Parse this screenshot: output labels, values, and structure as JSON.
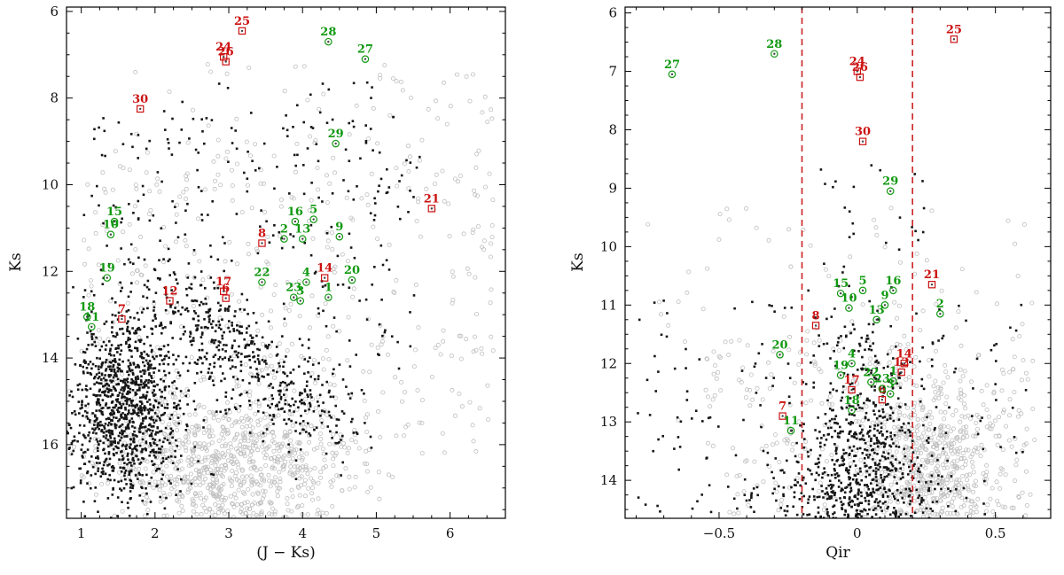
{
  "figure": {
    "background": "#ffffff"
  },
  "style": {
    "green": "#119911",
    "red": "#cc1111",
    "black_point": "#161616",
    "gray_point": "#bfbfbf",
    "frame": "#000000",
    "marker_dot": "#444444",
    "dashed_line_color": "#cc2222"
  },
  "seed": 1234,
  "chart_data": [
    {
      "type": "scatter",
      "panel": "left",
      "xlabel": "(J − Ks)",
      "ylabel": "Ks",
      "xlim": [
        0.8,
        6.75
      ],
      "ylim": [
        17.7,
        5.9
      ],
      "xticks": [
        {
          "v": 1,
          "l": "1"
        },
        {
          "v": 2,
          "l": "2"
        },
        {
          "v": 3,
          "l": "3"
        },
        {
          "v": 4,
          "l": "4"
        },
        {
          "v": 5,
          "l": "5"
        },
        {
          "v": 6,
          "l": "6"
        }
      ],
      "yticks": [
        {
          "v": 6,
          "l": "6"
        },
        {
          "v": 8,
          "l": "8"
        },
        {
          "v": 10,
          "l": "10"
        },
        {
          "v": 12,
          "l": "12"
        },
        {
          "v": 14,
          "l": "14"
        },
        {
          "v": 16,
          "l": "16"
        }
      ],
      "minor": {
        "x": 0.25,
        "y": 0.5
      },
      "clusters": [
        {
          "m": "c",
          "n": 900,
          "d": "g",
          "x": [
            3.05,
            0.85
          ],
          "y": [
            16.5,
            0.85
          ]
        },
        {
          "m": "c",
          "n": 380,
          "d": "u",
          "x": [
            1.0,
            6.6
          ],
          "y": [
            9.5,
            16.2
          ]
        },
        {
          "m": "c",
          "n": 80,
          "d": "u",
          "x": [
            1.4,
            6.6
          ],
          "y": [
            7.2,
            10.0
          ]
        },
        {
          "m": "s",
          "n": 1100,
          "d": "g",
          "x": [
            1.6,
            0.38
          ],
          "y": [
            15.2,
            1.05
          ]
        },
        {
          "m": "s",
          "n": 480,
          "d": "b",
          "x0": 2.15,
          "y0": 12.4,
          "x1": 4.35,
          "y1": 15.7,
          "sx": 0.33,
          "sy": 0.5
        },
        {
          "m": "s",
          "n": 270,
          "d": "u",
          "x": [
            1.0,
            5.6
          ],
          "y": [
            8.3,
            14.3
          ]
        },
        {
          "m": "s",
          "n": 26,
          "d": "u",
          "x": [
            1.6,
            5.0
          ],
          "y": [
            7.6,
            9.4
          ]
        }
      ],
      "sources": [
        {
          "id": "1",
          "c": "g",
          "x": 4.35,
          "y": 12.6
        },
        {
          "id": "2",
          "c": "g",
          "x": 3.75,
          "y": 11.25
        },
        {
          "id": "3",
          "c": "g",
          "x": 3.97,
          "y": 12.68
        },
        {
          "id": "4",
          "c": "g",
          "x": 4.05,
          "y": 12.25
        },
        {
          "id": "5",
          "c": "g",
          "x": 4.15,
          "y": 10.8
        },
        {
          "id": "6",
          "c": "r",
          "x": 2.96,
          "y": 12.62
        },
        {
          "id": "7",
          "c": "r",
          "x": 1.55,
          "y": 13.1
        },
        {
          "id": "8",
          "c": "r",
          "x": 3.45,
          "y": 11.35
        },
        {
          "id": "9",
          "c": "g",
          "x": 4.5,
          "y": 11.2
        },
        {
          "id": "10",
          "c": "g",
          "x": 1.4,
          "y": 11.15
        },
        {
          "id": "11",
          "c": "g",
          "x": 1.14,
          "y": 13.28
        },
        {
          "id": "12",
          "c": "r",
          "x": 2.2,
          "y": 12.68
        },
        {
          "id": "13",
          "c": "g",
          "x": 4.0,
          "y": 11.25
        },
        {
          "id": "14",
          "c": "r",
          "x": 4.3,
          "y": 12.15
        },
        {
          "id": "15",
          "c": "g",
          "x": 1.45,
          "y": 10.85
        },
        {
          "id": "16",
          "c": "g",
          "x": 3.9,
          "y": 10.85
        },
        {
          "id": "17",
          "c": "r",
          "x": 2.93,
          "y": 12.46
        },
        {
          "id": "18",
          "c": "g",
          "x": 1.08,
          "y": 13.05
        },
        {
          "id": "19",
          "c": "g",
          "x": 1.35,
          "y": 12.15
        },
        {
          "id": "20",
          "c": "g",
          "x": 4.67,
          "y": 12.2
        },
        {
          "id": "21",
          "c": "r",
          "x": 5.75,
          "y": 10.55
        },
        {
          "id": "22",
          "c": "g",
          "x": 3.45,
          "y": 12.25
        },
        {
          "id": "23",
          "c": "g",
          "x": 3.88,
          "y": 12.6
        },
        {
          "id": "24",
          "c": "r",
          "x": 2.93,
          "y": 7.05
        },
        {
          "id": "25",
          "c": "r",
          "x": 3.18,
          "y": 6.45
        },
        {
          "id": "26",
          "c": "r",
          "x": 2.96,
          "y": 7.16
        },
        {
          "id": "27",
          "c": "g",
          "x": 4.85,
          "y": 7.1
        },
        {
          "id": "28",
          "c": "g",
          "x": 4.35,
          "y": 6.7
        },
        {
          "id": "29",
          "c": "g",
          "x": 4.45,
          "y": 9.05
        },
        {
          "id": "30",
          "c": "r",
          "x": 1.8,
          "y": 8.25
        }
      ]
    },
    {
      "type": "scatter",
      "panel": "right",
      "xlabel": "Qir",
      "ylabel": "Ks",
      "xlim": [
        -0.84,
        0.7
      ],
      "ylim": [
        14.65,
        5.9
      ],
      "xticks": [
        {
          "v": -0.5,
          "l": "−0.5"
        },
        {
          "v": 0,
          "l": "0"
        },
        {
          "v": 0.5,
          "l": "0.5"
        }
      ],
      "yticks": [
        {
          "v": 6,
          "l": "6"
        },
        {
          "v": 7,
          "l": "7"
        },
        {
          "v": 8,
          "l": "8"
        },
        {
          "v": 9,
          "l": "9"
        },
        {
          "v": 10,
          "l": "10"
        },
        {
          "v": 11,
          "l": "11"
        },
        {
          "v": 12,
          "l": "12"
        },
        {
          "v": 13,
          "l": "13"
        },
        {
          "v": 14,
          "l": "14"
        }
      ],
      "minor": {
        "x": 0.1,
        "y": 0.25
      },
      "dashed_lines": {
        "x": [
          -0.2,
          0.2
        ]
      },
      "clusters": [
        {
          "m": "c",
          "n": 620,
          "d": "g",
          "x": [
            0.28,
            0.13
          ],
          "y": [
            13.9,
            0.75
          ]
        },
        {
          "m": "c",
          "n": 260,
          "d": "u",
          "x": [
            -0.55,
            0.64
          ],
          "y": [
            11.6,
            14.6
          ]
        },
        {
          "m": "c",
          "n": 90,
          "d": "u",
          "x": [
            -0.8,
            0.64
          ],
          "y": [
            9.3,
            13.0
          ]
        },
        {
          "m": "s",
          "n": 460,
          "d": "g",
          "x": [
            0.03,
            0.1
          ],
          "y": [
            13.3,
            1.0
          ]
        },
        {
          "m": "s",
          "n": 460,
          "d": "g",
          "x": [
            0.0,
            0.17
          ],
          "y": [
            14.35,
            0.55
          ]
        },
        {
          "m": "s",
          "n": 170,
          "d": "u",
          "x": [
            -0.82,
            0.62
          ],
          "y": [
            10.8,
            14.6
          ]
        },
        {
          "m": "s",
          "n": 28,
          "d": "u",
          "x": [
            -0.2,
            0.25
          ],
          "y": [
            8.6,
            10.8
          ]
        }
      ],
      "sources": [
        {
          "id": "1",
          "c": "g",
          "x": 0.13,
          "y": 12.3
        },
        {
          "id": "2",
          "c": "g",
          "x": 0.3,
          "y": 11.15
        },
        {
          "id": "3",
          "c": "g",
          "x": 0.12,
          "y": 12.52
        },
        {
          "id": "4",
          "c": "g",
          "x": -0.02,
          "y": 12.0
        },
        {
          "id": "5",
          "c": "g",
          "x": 0.02,
          "y": 10.75
        },
        {
          "id": "6",
          "c": "r",
          "x": 0.09,
          "y": 12.62
        },
        {
          "id": "7",
          "c": "r",
          "x": -0.27,
          "y": 12.9
        },
        {
          "id": "8",
          "c": "r",
          "x": -0.15,
          "y": 11.35
        },
        {
          "id": "9",
          "c": "g",
          "x": 0.1,
          "y": 11.0
        },
        {
          "id": "10",
          "c": "g",
          "x": -0.03,
          "y": 11.05
        },
        {
          "id": "11",
          "c": "g",
          "x": -0.24,
          "y": 13.15
        },
        {
          "id": "12",
          "c": "r",
          "x": 0.16,
          "y": 12.15
        },
        {
          "id": "13",
          "c": "g",
          "x": 0.07,
          "y": 11.25
        },
        {
          "id": "14",
          "c": "r",
          "x": 0.17,
          "y": 12.0
        },
        {
          "id": "15",
          "c": "g",
          "x": -0.06,
          "y": 10.8
        },
        {
          "id": "16",
          "c": "g",
          "x": 0.13,
          "y": 10.75
        },
        {
          "id": "17",
          "c": "r",
          "x": -0.02,
          "y": 12.45
        },
        {
          "id": "18",
          "c": "g",
          "x": -0.02,
          "y": 12.8
        },
        {
          "id": "19",
          "c": "g",
          "x": -0.06,
          "y": 12.2
        },
        {
          "id": "20",
          "c": "g",
          "x": -0.28,
          "y": 11.85
        },
        {
          "id": "21",
          "c": "r",
          "x": 0.27,
          "y": 10.65
        },
        {
          "id": "22",
          "c": "g",
          "x": 0.05,
          "y": 12.32
        },
        {
          "id": "23",
          "c": "g",
          "x": 0.09,
          "y": 12.43
        },
        {
          "id": "24",
          "c": "r",
          "x": 0.0,
          "y": 7.0
        },
        {
          "id": "25",
          "c": "r",
          "x": 0.35,
          "y": 6.45
        },
        {
          "id": "26",
          "c": "r",
          "x": 0.01,
          "y": 7.1
        },
        {
          "id": "27",
          "c": "g",
          "x": -0.67,
          "y": 7.05
        },
        {
          "id": "28",
          "c": "g",
          "x": -0.3,
          "y": 6.7
        },
        {
          "id": "29",
          "c": "g",
          "x": 0.12,
          "y": 9.05
        },
        {
          "id": "30",
          "c": "r",
          "x": 0.02,
          "y": 8.2
        }
      ]
    }
  ]
}
